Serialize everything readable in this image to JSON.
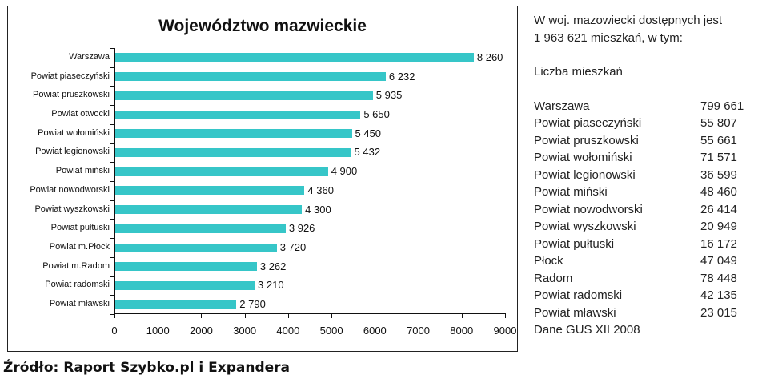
{
  "chart_data": {
    "type": "bar",
    "orientation": "horizontal",
    "title": "Województwo mazwieckie",
    "xlabel": "",
    "ylabel": "",
    "xlim": [
      0,
      9000
    ],
    "xticks": [
      0,
      1000,
      2000,
      3000,
      4000,
      5000,
      6000,
      7000,
      8000,
      9000
    ],
    "grid": false,
    "legend": null,
    "bar_color": "#36c6c8",
    "categories": [
      "Warszawa",
      "Powiat piaseczyński",
      "Powiat pruszkowski",
      "Powiat otwocki",
      "Powiat wołomiński",
      "Powiat legionowski",
      "Powiat miński",
      "Powiat nowodworski",
      "Powiat wyszkowski",
      "Powiat pułtuski",
      "Powiat m.Płock",
      "Powiat m.Radom",
      "Powiat radomski",
      "Powiat mławski"
    ],
    "values": [
      8260,
      6232,
      5935,
      5650,
      5450,
      5432,
      4900,
      4360,
      4300,
      3926,
      3720,
      3262,
      3210,
      2790
    ],
    "value_labels": [
      "8 260",
      "6 232",
      "5 935",
      "5 650",
      "5 450",
      "5 432",
      "4 900",
      "4 360",
      "4 300",
      "3 926",
      "3 720",
      "3 262",
      "3 210",
      "2 790"
    ]
  },
  "side_panel": {
    "intro_line1": "W woj. mazowiecki dostępnych jest",
    "intro_line2": "1 963 621 mieszkań, w tym:",
    "heading": "Liczba mieszkań",
    "rows": [
      {
        "name": "Warszawa",
        "value": "799 661"
      },
      {
        "name": "Powiat piaseczyński",
        "value": "55 807"
      },
      {
        "name": "Powiat pruszkowski",
        "value": "55 661"
      },
      {
        "name": "Powiat wołomiński",
        "value": "71 571"
      },
      {
        "name": "Powiat legionowski",
        "value": "36 599"
      },
      {
        "name": "Powiat miński",
        "value": "48 460"
      },
      {
        "name": "Powiat nowodworski",
        "value": "26 414"
      },
      {
        "name": "Powiat wyszkowski",
        "value": "20 949"
      },
      {
        "name": "Powiat pułtuski",
        "value": "16 172"
      },
      {
        "name": "Płock",
        "value": "47 049"
      },
      {
        "name": "Radom",
        "value": "78 448"
      },
      {
        "name": "Powiat radomski",
        "value": "42 135"
      },
      {
        "name": "Powiat mławski",
        "value": "23 015"
      }
    ],
    "footer": "Dane GUS XII 2008"
  },
  "source": "Źródło: Raport Szybko.pl i Expandera"
}
